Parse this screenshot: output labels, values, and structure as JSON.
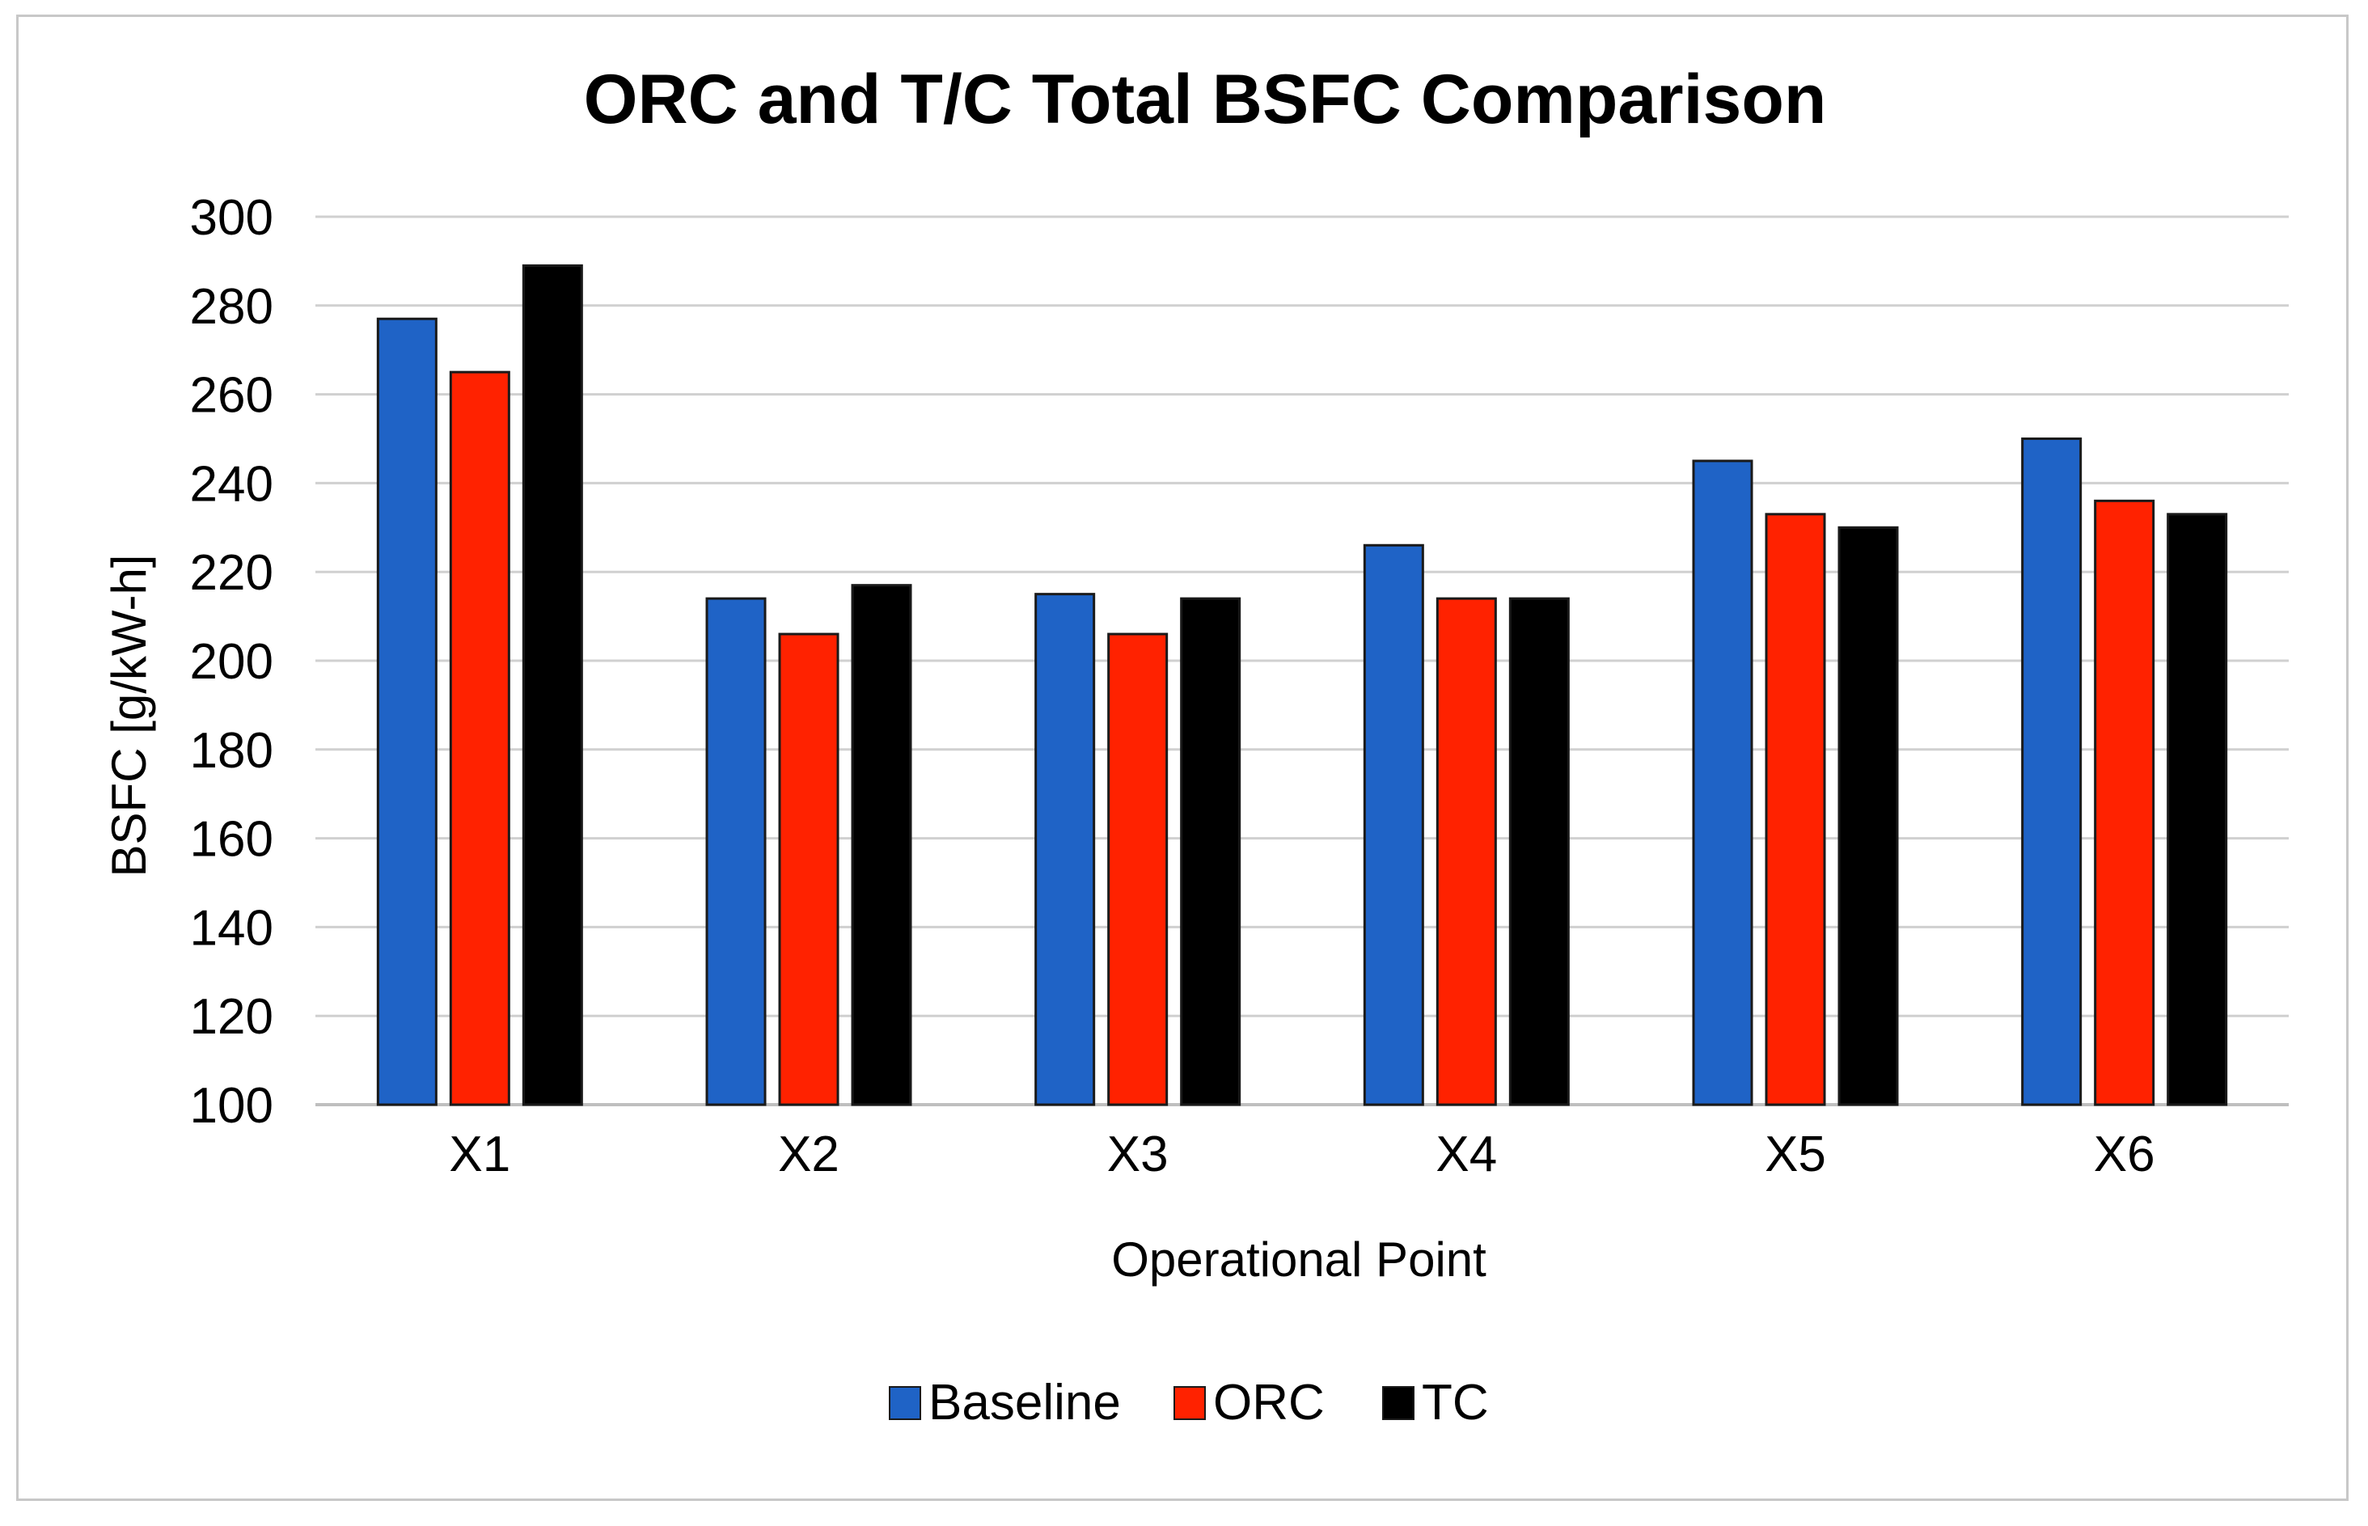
{
  "chart_data": {
    "type": "bar",
    "title": "ORC and T/C Total BSFC Comparison",
    "xlabel": "Operational Point",
    "ylabel": "BSFC [g/kW-h]",
    "ylim": [
      100,
      300
    ],
    "yticks": [
      100,
      120,
      140,
      160,
      180,
      200,
      220,
      240,
      260,
      280,
      300
    ],
    "grid": true,
    "legend_position": "bottom",
    "categories": [
      "X1",
      "X2",
      "X3",
      "X4",
      "X5",
      "X6"
    ],
    "series": [
      {
        "name": "Baseline",
        "color": "#1f63c6",
        "values": [
          277,
          214,
          215,
          226,
          245,
          250
        ]
      },
      {
        "name": "ORC",
        "color": "#ff2200",
        "values": [
          265,
          206,
          206,
          214,
          233,
          236
        ]
      },
      {
        "name": "TC",
        "color": "#000000",
        "values": [
          289,
          217,
          214,
          214,
          230,
          233
        ]
      }
    ]
  }
}
